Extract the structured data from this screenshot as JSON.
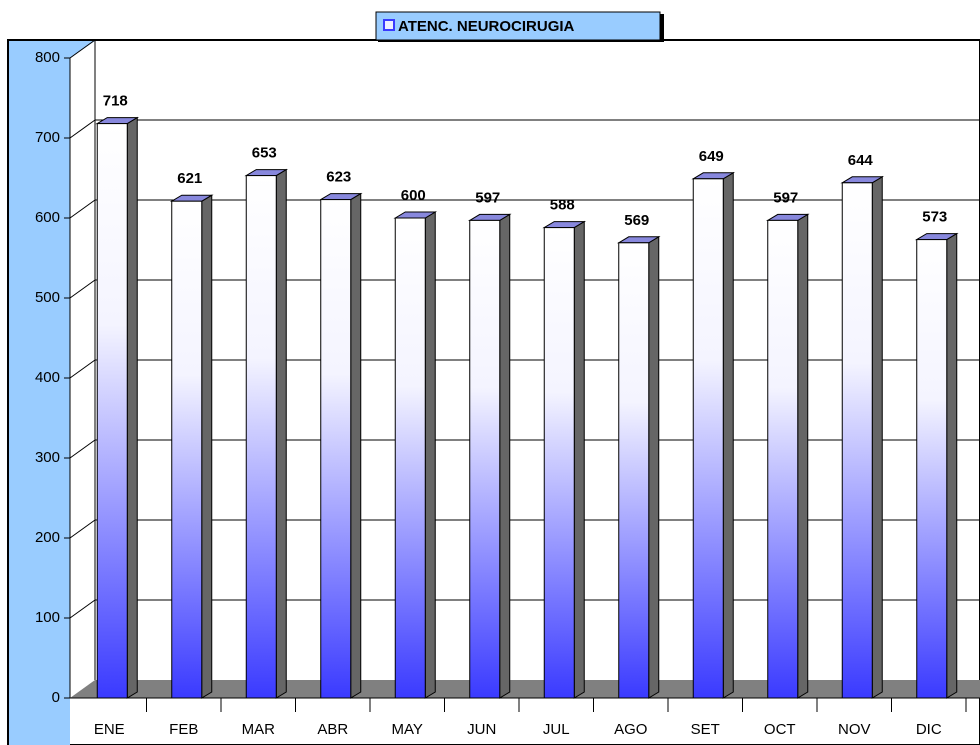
{
  "chart_data": {
    "type": "bar3d",
    "categories": [
      "ENE",
      "FEB",
      "MAR",
      "ABR",
      "MAY",
      "JUN",
      "JUL",
      "AGO",
      "SET",
      "OCT",
      "NOV",
      "DIC"
    ],
    "series": [
      {
        "name": "ATENC. NEUROCIRUGIA",
        "color": "#3a3aff",
        "values": [
          718,
          621,
          653,
          623,
          600,
          597,
          588,
          569,
          649,
          597,
          644,
          573
        ]
      }
    ],
    "ylim": [
      0,
      800
    ],
    "yticks": [
      0,
      100,
      200,
      300,
      400,
      500,
      600,
      700,
      800
    ],
    "grid": true
  }
}
